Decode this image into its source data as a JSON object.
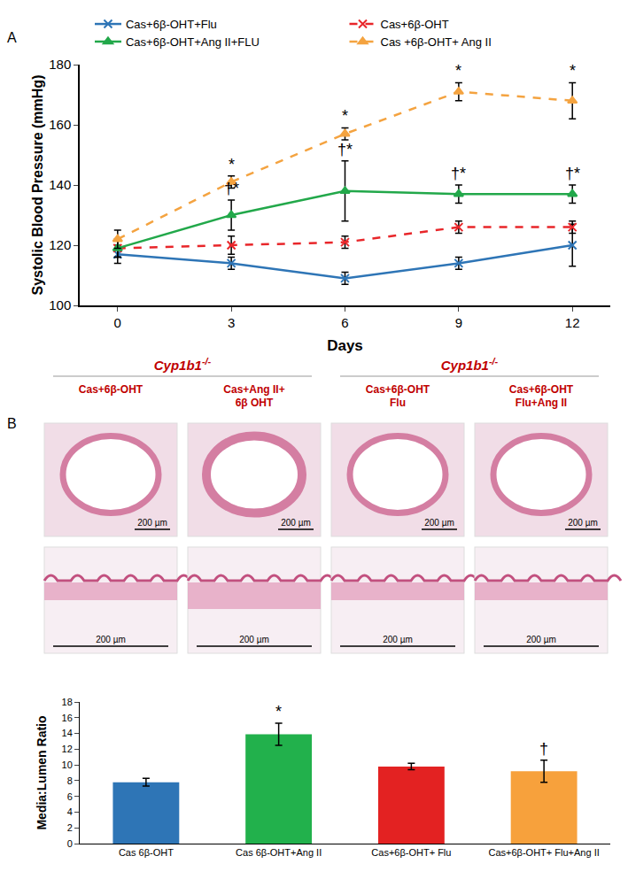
{
  "panel_labels": [
    "A",
    "B"
  ],
  "chart_data": [
    {
      "type": "line",
      "x": [
        0,
        3,
        6,
        9,
        12
      ],
      "xlabel": "Days",
      "ylabel": "Systolic Blood Pressure (mmHg)",
      "xlim": [
        -1,
        13
      ],
      "xticks": [
        0,
        3,
        6,
        9,
        12
      ],
      "ylim": [
        100,
        180
      ],
      "yticks": [
        100,
        120,
        140,
        160,
        180
      ],
      "grid": false,
      "legend": "top",
      "series": [
        {
          "name": "Cas+6β-OHT+Flu",
          "color": "#2e75b6",
          "marker": "x",
          "line_style": "solid",
          "values": [
            117,
            114,
            109,
            114,
            120
          ],
          "errors": [
            3,
            2,
            2,
            2,
            7
          ]
        },
        {
          "name": "Cas+6β-OHT",
          "color": "#e8262a",
          "marker": "x",
          "line_style": "dash",
          "values": [
            119,
            120,
            121,
            126,
            126
          ],
          "errors": [
            3,
            3,
            2,
            2,
            2
          ]
        },
        {
          "name": "Cas+6β-OHT+Ang II+FLU",
          "color": "#22a84a",
          "marker": "triangle",
          "line_style": "solid",
          "values": [
            119,
            130,
            138,
            137,
            137
          ],
          "errors": [
            3,
            5,
            10,
            3,
            3
          ]
        },
        {
          "name": "Cas +6β-OHT+ Ang II",
          "color": "#f4a340",
          "marker": "triangle",
          "line_style": "dash",
          "values": [
            122,
            141,
            157,
            171,
            168
          ],
          "errors": [
            3,
            2,
            2,
            3,
            6
          ]
        }
      ],
      "annotations": [
        {
          "series": "Cas +6β-OHT+ Ang II",
          "x": 3,
          "text": "*"
        },
        {
          "series": "Cas +6β-OHT+ Ang II",
          "x": 6,
          "text": "*"
        },
        {
          "series": "Cas +6β-OHT+ Ang II",
          "x": 9,
          "text": "*"
        },
        {
          "series": "Cas +6β-OHT+ Ang II",
          "x": 12,
          "text": "*"
        },
        {
          "series": "Cas+6β-OHT+Ang II+FLU",
          "x": 3,
          "text": "†*"
        },
        {
          "series": "Cas+6β-OHT+Ang II+FLU",
          "x": 6,
          "text": "†*"
        },
        {
          "series": "Cas+6β-OHT+Ang II+FLU",
          "x": 9,
          "text": "†*"
        },
        {
          "series": "Cas+6β-OHT+Ang II+FLU",
          "x": 12,
          "text": "†*"
        }
      ]
    },
    {
      "type": "bar",
      "categories": [
        "Cas 6β-OHT",
        "Cas 6β-OHT+Ang II",
        "Cas+6β-OHT+ Flu",
        "Cas+6β-OHT+ Flu+Ang II"
      ],
      "values": [
        7.8,
        13.9,
        9.8,
        9.2
      ],
      "errors": [
        0.5,
        1.4,
        0.4,
        1.4
      ],
      "colors": [
        "#2e75b6",
        "#22b14c",
        "#e32222",
        "#f7a13c"
      ],
      "ylabel": "Media:Lumen Ratio",
      "ylim": [
        0,
        18
      ],
      "yticks": [
        0,
        2,
        4,
        6,
        8,
        10,
        12,
        14,
        16,
        18
      ],
      "grid": false,
      "annotations": [
        {
          "category": "Cas 6β-OHT+Ang II",
          "text": "*"
        },
        {
          "category": "Cas+6β-OHT+ Flu+Ang II",
          "text": "†"
        }
      ]
    }
  ],
  "histology": {
    "groups": [
      {
        "gene": "Cyp1b1",
        "superscript": "-/-",
        "columns": [
          0,
          1
        ]
      },
      {
        "gene": "Cyp1b1",
        "superscript": "-/-",
        "columns": [
          2,
          3
        ]
      }
    ],
    "columns": [
      [
        "Cas+6β-OHT"
      ],
      [
        "Cas+Ang II+",
        "6β OHT"
      ],
      [
        "Cas+6β-OHT",
        "Flu"
      ],
      [
        "Cas+6β-OHT",
        "Flu+Ang II"
      ]
    ],
    "scale_bar": "200 µm"
  }
}
